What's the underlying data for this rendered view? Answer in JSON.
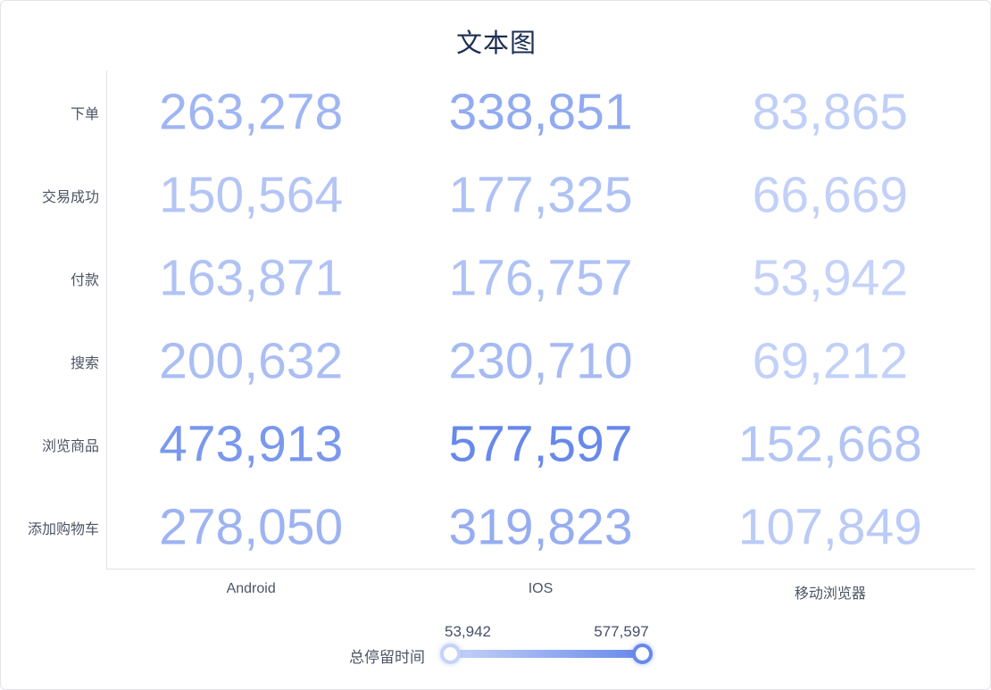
{
  "chart_data": {
    "type": "heatmap",
    "title": "文本图",
    "render_style": "text-grid",
    "categories_y": [
      "下单",
      "交易成功",
      "付款",
      "搜索",
      "浏览商品",
      "添加购物车"
    ],
    "categories_x": [
      "Android",
      "IOS",
      "移动浏览器"
    ],
    "series": [
      {
        "name": "Android",
        "values": [
          263278,
          150564,
          163871,
          200632,
          473913,
          278050
        ]
      },
      {
        "name": "IOS",
        "values": [
          338851,
          177325,
          176757,
          230710,
          577597,
          319823
        ]
      },
      {
        "name": "移动浏览器",
        "values": [
          83865,
          66669,
          53942,
          69212,
          152668,
          107849
        ]
      }
    ],
    "value_format": "thousands-comma",
    "grid": false,
    "legend_position": "bottom",
    "visual_map": {
      "label": "总停留时间",
      "min": 53942,
      "max": 577597,
      "min_label": "53,942",
      "max_label": "577,597",
      "color_min": "#c5d3f8",
      "color_max": "#6889ea"
    }
  }
}
